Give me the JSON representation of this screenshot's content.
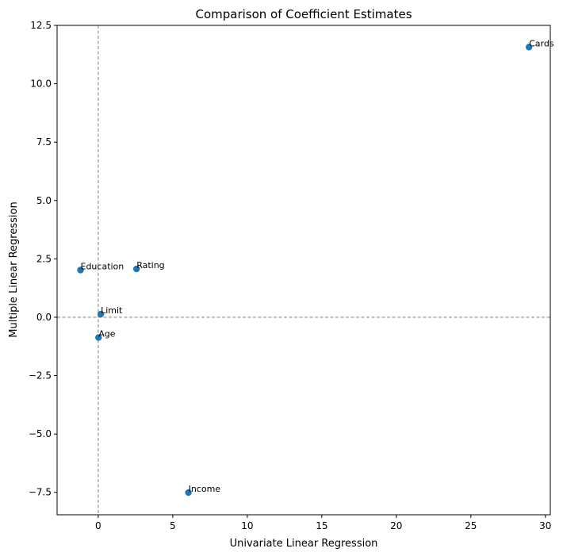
{
  "chart_data": {
    "type": "scatter",
    "title": "Comparison of Coefficient Estimates",
    "xlabel": "Univariate Linear Regression",
    "ylabel": "Multiple Linear Regression",
    "xlim": [
      -2.76,
      30.33
    ],
    "ylim": [
      -8.46,
      12.5
    ],
    "xticks": [
      0,
      5,
      10,
      15,
      20,
      25,
      30
    ],
    "xtick_labels": [
      "0",
      "5",
      "10",
      "15",
      "20",
      "25",
      "30"
    ],
    "yticks": [
      -7.5,
      -5.0,
      -2.5,
      0.0,
      2.5,
      5.0,
      7.5,
      10.0,
      12.5
    ],
    "ytick_labels": [
      "−7.5",
      "−5.0",
      "−2.5",
      "0.0",
      "2.5",
      "5.0",
      "7.5",
      "10.0",
      "12.5"
    ],
    "reference_lines": [
      {
        "orientation": "vertical",
        "value": 0,
        "style": "dashed",
        "color": "#808080"
      },
      {
        "orientation": "horizontal",
        "value": 0,
        "style": "dashed",
        "color": "#808080"
      }
    ],
    "points": [
      {
        "label": "Cards",
        "x": 28.9,
        "y": 11.57
      },
      {
        "label": "Rating",
        "x": 2.57,
        "y": 2.07
      },
      {
        "label": "Education",
        "x": -1.19,
        "y": 2.02
      },
      {
        "label": "Limit",
        "x": 0.17,
        "y": 0.13
      },
      {
        "label": "Age",
        "x": 0.02,
        "y": -0.87
      },
      {
        "label": "Income",
        "x": 6.05,
        "y": -7.51
      }
    ],
    "marker_color": "#1f77b4",
    "grid": false
  }
}
